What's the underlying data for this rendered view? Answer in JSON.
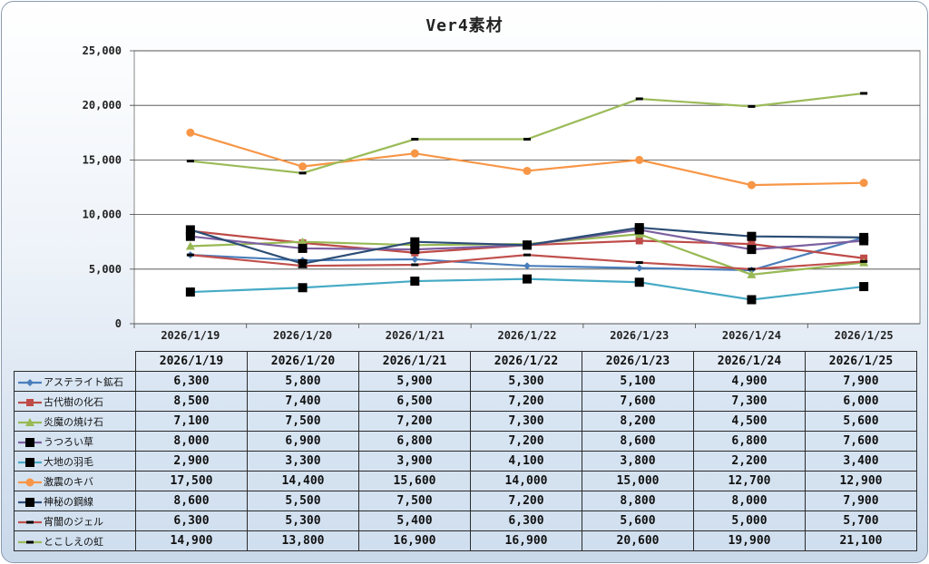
{
  "chart_data": {
    "type": "line",
    "title": "Ver4素材",
    "categories": [
      "2026/1/19",
      "2026/1/20",
      "2026/1/21",
      "2026/1/22",
      "2026/1/23",
      "2026/1/24",
      "2026/1/25"
    ],
    "ylim": [
      0,
      25000
    ],
    "yticks": [
      "0",
      "5,000",
      "10,000",
      "15,000",
      "20,000",
      "25,000"
    ],
    "series": [
      {
        "name": "アステライト鉱石",
        "color": "#4a7ebb",
        "marker": "diamond",
        "values": [
          6300,
          5800,
          5900,
          5300,
          5100,
          4900,
          7900
        ],
        "labels": [
          "6,300",
          "5,800",
          "5,900",
          "5,300",
          "5,100",
          "4,900",
          "7,900"
        ]
      },
      {
        "name": "古代樹の化石",
        "color": "#be4b48",
        "marker": "square",
        "values": [
          8500,
          7400,
          6500,
          7200,
          7600,
          7300,
          6000
        ],
        "labels": [
          "8,500",
          "7,400",
          "6,500",
          "7,200",
          "7,600",
          "7,300",
          "6,000"
        ]
      },
      {
        "name": "炎魔の焼け石",
        "color": "#98b954",
        "marker": "triangle",
        "values": [
          7100,
          7500,
          7200,
          7300,
          8200,
          4500,
          5600
        ],
        "labels": [
          "7,100",
          "7,500",
          "7,200",
          "7,300",
          "8,200",
          "4,500",
          "5,600"
        ]
      },
      {
        "name": "うつろい草",
        "color": "#7d60a0",
        "marker": "blacksquare",
        "values": [
          8000,
          6900,
          6800,
          7200,
          8600,
          6800,
          7600
        ],
        "labels": [
          "8,000",
          "6,900",
          "6,800",
          "7,200",
          "8,600",
          "6,800",
          "7,600"
        ]
      },
      {
        "name": "大地の羽毛",
        "color": "#46aac5",
        "marker": "blacksquare",
        "values": [
          2900,
          3300,
          3900,
          4100,
          3800,
          2200,
          3400
        ],
        "labels": [
          "2,900",
          "3,300",
          "3,900",
          "4,100",
          "3,800",
          "2,200",
          "3,400"
        ]
      },
      {
        "name": "激震のキバ",
        "color": "#f79646",
        "marker": "circle",
        "values": [
          17500,
          14400,
          15600,
          14000,
          15000,
          12700,
          12900
        ],
        "labels": [
          "17,500",
          "14,400",
          "15,600",
          "14,000",
          "15,000",
          "12,700",
          "12,900"
        ]
      },
      {
        "name": "神秘の鋼線",
        "color": "#2c4d75",
        "marker": "blacksquare",
        "values": [
          8600,
          5500,
          7500,
          7200,
          8800,
          8000,
          7900
        ],
        "labels": [
          "8,600",
          "5,500",
          "7,500",
          "7,200",
          "8,800",
          "8,000",
          "7,900"
        ]
      },
      {
        "name": "宵闇のジェル",
        "color": "#c0504d",
        "marker": "dash",
        "values": [
          6300,
          5300,
          5400,
          6300,
          5600,
          5000,
          5700
        ],
        "labels": [
          "6,300",
          "5,300",
          "5,400",
          "6,300",
          "5,600",
          "5,000",
          "5,700"
        ]
      },
      {
        "name": "とこしえの虹",
        "color": "#9bbb59",
        "marker": "dash",
        "values": [
          14900,
          13800,
          16900,
          16900,
          20600,
          19900,
          21100
        ],
        "labels": [
          "14,900",
          "13,800",
          "16,900",
          "16,900",
          "20,600",
          "19,900",
          "21,100"
        ]
      }
    ]
  }
}
